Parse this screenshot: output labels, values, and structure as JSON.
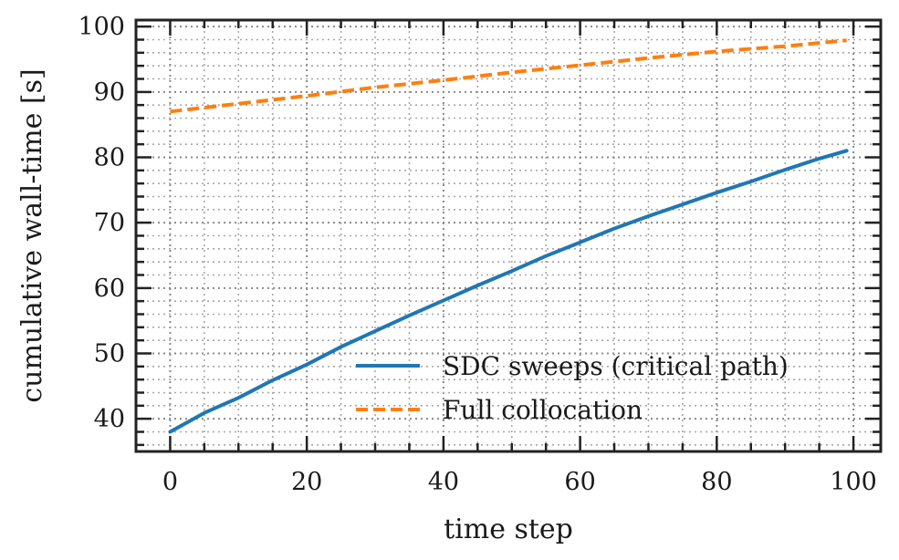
{
  "chart_data": {
    "type": "line",
    "title": "",
    "xlabel": "time step",
    "ylabel": "cumulative wall-time [s]",
    "xlim": [
      -5,
      104
    ],
    "ylim": [
      35,
      101
    ],
    "xticks": [
      0,
      20,
      40,
      60,
      80,
      100
    ],
    "yticks": [
      40,
      50,
      60,
      70,
      80,
      90,
      100
    ],
    "grid": true,
    "legend_position": "bottom-right",
    "series": [
      {
        "name": "SDC sweeps (critical path)",
        "color": "#1f77b4",
        "style": "solid",
        "x": [
          0,
          5,
          10,
          15,
          20,
          25,
          30,
          35,
          40,
          45,
          50,
          55,
          60,
          65,
          70,
          75,
          80,
          85,
          90,
          95,
          99
        ],
        "y": [
          38.0,
          40.9,
          43.2,
          45.9,
          48.3,
          51.0,
          53.4,
          55.8,
          58.1,
          60.4,
          62.6,
          64.9,
          67.0,
          69.1,
          71.0,
          72.8,
          74.6,
          76.3,
          78.1,
          79.8,
          81.0
        ]
      },
      {
        "name": "Full collocation",
        "color": "#ff7f0e",
        "style": "dashed",
        "x": [
          0,
          10,
          20,
          30,
          40,
          50,
          60,
          70,
          80,
          90,
          99
        ],
        "y": [
          87.0,
          88.2,
          89.4,
          90.7,
          91.8,
          93.0,
          94.1,
          95.2,
          96.2,
          97.0,
          97.9
        ]
      }
    ]
  }
}
